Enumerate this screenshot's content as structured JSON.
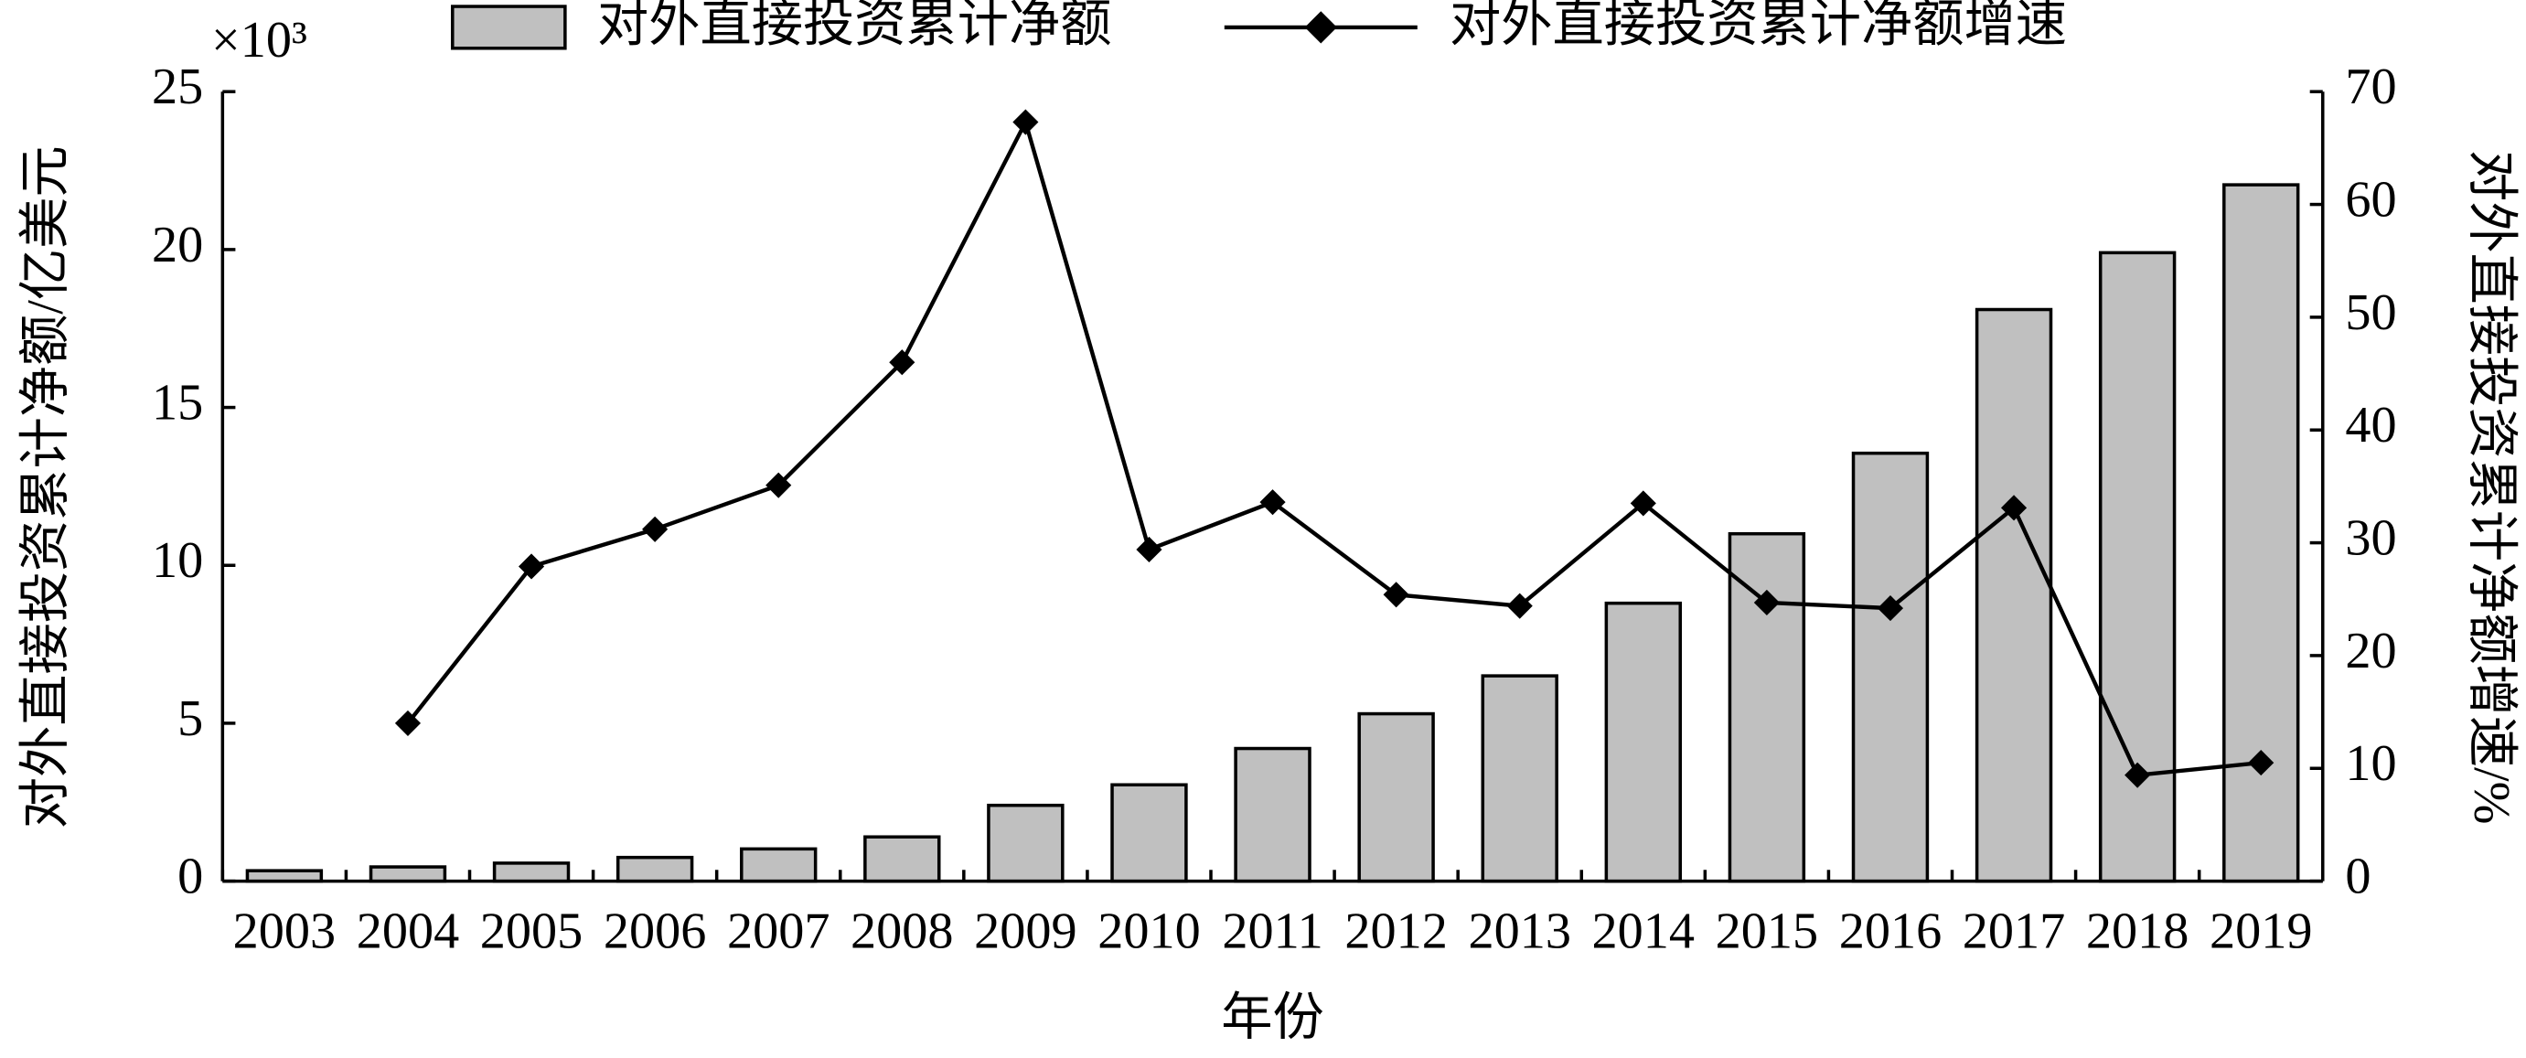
{
  "chart_data": {
    "type": "bar_line",
    "y_multiplier": "×10³",
    "xlabel": "年份",
    "ylabel": "对外直接投资累计净额/亿美元",
    "y2label": "对外直接投资累计净额增速/%",
    "categories": [
      "2003",
      "2004",
      "2005",
      "2006",
      "2007",
      "2008",
      "2009",
      "2010",
      "2011",
      "2012",
      "2013",
      "2014",
      "2015",
      "2016",
      "2017",
      "2018",
      "2019"
    ],
    "series": [
      {
        "name": "对外直接投资累计净额",
        "type": "bar",
        "color": "#c0c0c0",
        "values": [
          0.33,
          0.45,
          0.57,
          0.75,
          1.02,
          1.4,
          2.4,
          3.05,
          4.2,
          5.3,
          6.5,
          8.8,
          11.0,
          13.55,
          18.1,
          19.9,
          22.05
        ]
      },
      {
        "name": "对外直接投资累计净额增速",
        "type": "line",
        "axis": "y2",
        "color": "#000000",
        "values": [
          null,
          14.0,
          27.9,
          31.2,
          35.1,
          46.0,
          67.3,
          29.4,
          33.6,
          25.4,
          24.4,
          33.5,
          24.7,
          24.2,
          33.1,
          9.4,
          10.5
        ]
      }
    ],
    "ylim": [
      0,
      25
    ],
    "yticks": [
      0,
      5,
      10,
      15,
      20,
      25
    ],
    "y2lim": [
      0,
      70
    ],
    "y2ticks": [
      0,
      10,
      20,
      30,
      40,
      50,
      60,
      70
    ]
  }
}
